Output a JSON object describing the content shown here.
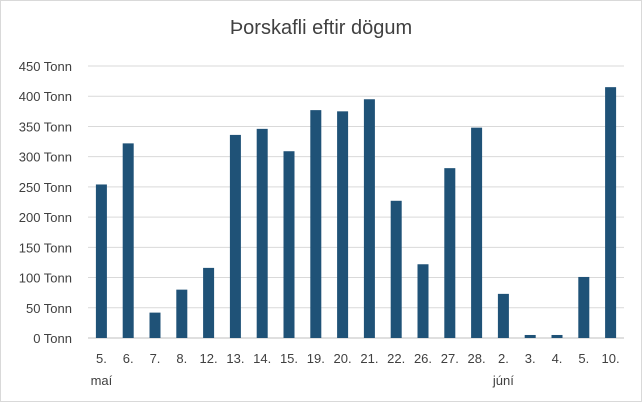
{
  "chart_data": {
    "type": "bar",
    "title": "Þorskafli eftir dögum",
    "xlabel": "",
    "ylabel": "",
    "ylim": [
      0,
      450
    ],
    "yticks": [
      0,
      50,
      100,
      150,
      200,
      250,
      300,
      350,
      400,
      450
    ],
    "ytick_labels": [
      "0 Tonn",
      "50 Tonn",
      "100 Tonn",
      "150 Tonn",
      "200 Tonn",
      "250 Tonn",
      "300 Tonn",
      "350 Tonn",
      "400 Tonn",
      "450 Tonn"
    ],
    "categories": [
      "5.",
      "6.",
      "7.",
      "8.",
      "12.",
      "13.",
      "14.",
      "15.",
      "19.",
      "20.",
      "21.",
      "22.",
      "26.",
      "27.",
      "28.",
      "2.",
      "3.",
      "4.",
      "5.",
      "10."
    ],
    "category_groups": [
      {
        "label": "maí",
        "start_index": 0
      },
      {
        "label": "júní",
        "start_index": 15
      }
    ],
    "values": [
      254,
      322,
      42,
      80,
      116,
      336,
      346,
      309,
      377,
      375,
      395,
      227,
      122,
      281,
      348,
      73,
      5,
      5,
      101,
      415
    ],
    "bar_color": "#1f5277",
    "grid": true,
    "legend": "none"
  }
}
